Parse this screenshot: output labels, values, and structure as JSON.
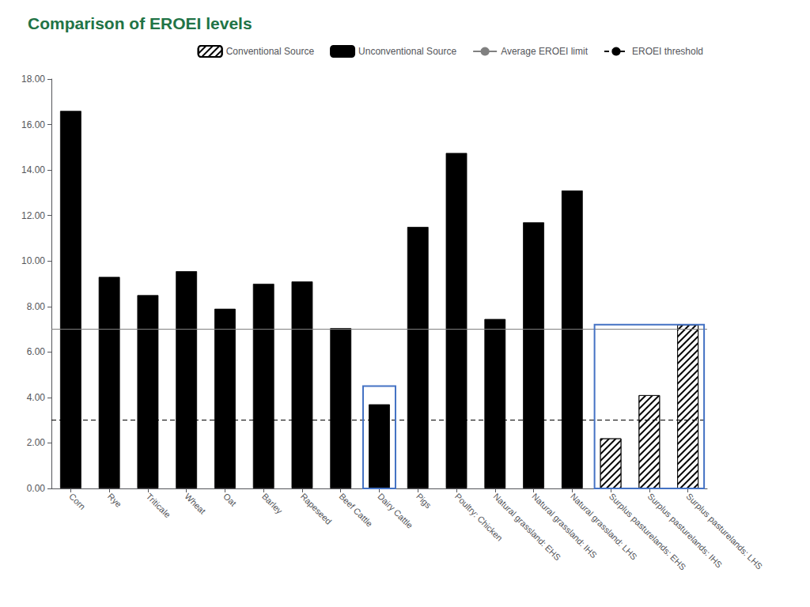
{
  "chart_data": {
    "type": "bar",
    "title": "Comparison of EROEI levels",
    "title_color": "#217346",
    "categories": [
      "Corn",
      "Rye",
      "Triticale",
      "Wheat",
      "Oat",
      "Barley",
      "Rapeseed",
      "Beef Cattle",
      "Dairy Cattle",
      "Pigs",
      "Poultry: Chicken",
      "Natural grassland: EHS",
      "Natural grassland: IHS",
      "Natural grassland: LHS",
      "Surplus pasturelands: EHS",
      "Surplus pasturelands: IHS",
      "Surplus pasturelands: LHS"
    ],
    "series": [
      {
        "name": "Conventional Source",
        "color": "white",
        "marker": "hatch",
        "values": [
          null,
          null,
          null,
          null,
          null,
          null,
          null,
          null,
          null,
          null,
          null,
          null,
          null,
          null,
          2.2,
          4.1,
          7.2
        ]
      },
      {
        "name": "Unconventional Source",
        "color": "black",
        "values": [
          16.6,
          9.3,
          8.5,
          9.55,
          7.9,
          9.0,
          9.1,
          7.05,
          3.7,
          11.5,
          14.75,
          7.45,
          11.7,
          13.1,
          null,
          null,
          null
        ]
      }
    ],
    "reference_lines": [
      {
        "name": "Average EROEI limit",
        "value": 7.0,
        "color": "#808080",
        "line_style": "solid"
      },
      {
        "name": "EROEI threshold",
        "value": 3.0,
        "color": "black",
        "line_style": "dashed"
      }
    ],
    "highlight_boxes": [
      {
        "categories": [
          "Dairy Cattle"
        ],
        "height": 4.5,
        "color": "#4472C4"
      },
      {
        "categories": [
          "Surplus pasturelands: EHS",
          "Surplus pasturelands: IHS",
          "Surplus pasturelands: LHS"
        ],
        "height": 7.2,
        "color": "#4472C4"
      }
    ],
    "ylim": [
      0,
      18.0
    ],
    "yticks": [
      {
        "value": 0.0,
        "label": "0.00"
      },
      {
        "value": 2.0,
        "label": "2.00"
      },
      {
        "value": 4.0,
        "label": "4.00"
      },
      {
        "value": 6.0,
        "label": "6.00"
      },
      {
        "value": 8.0,
        "label": "8.00"
      },
      {
        "value": 10.0,
        "label": "10.00"
      },
      {
        "value": 12.0,
        "label": "12.00"
      },
      {
        "value": 14.0,
        "label": "14.00"
      },
      {
        "value": 16.0,
        "label": "16.00"
      },
      {
        "value": 18.0,
        "label": "18.00"
      }
    ],
    "grid": false,
    "legend": "upper right"
  }
}
